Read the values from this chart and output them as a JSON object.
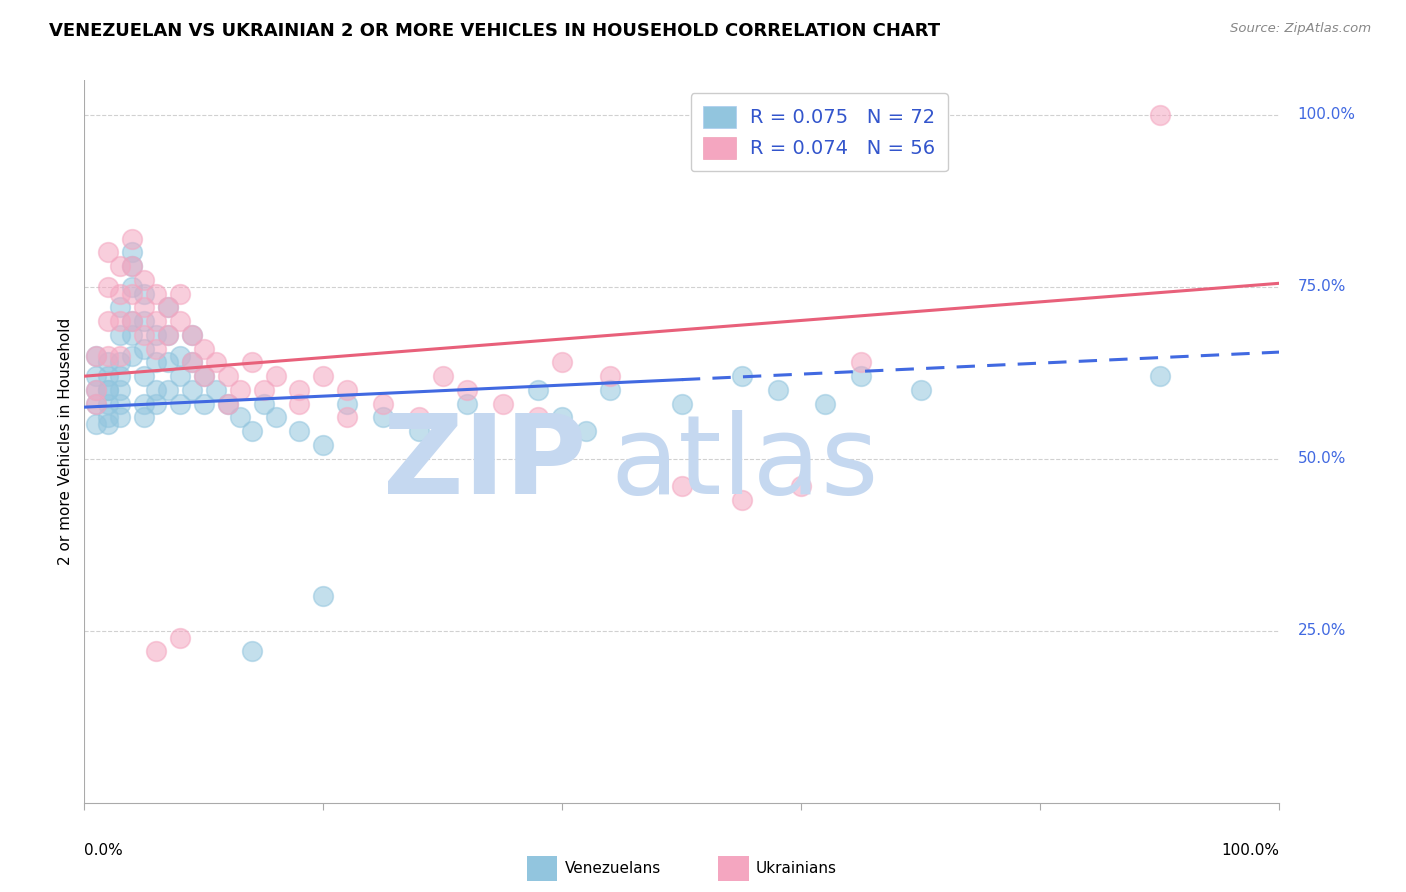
{
  "title": "VENEZUELAN VS UKRAINIAN 2 OR MORE VEHICLES IN HOUSEHOLD CORRELATION CHART",
  "source": "Source: ZipAtlas.com",
  "ylabel": "2 or more Vehicles in Household",
  "y_tick_labels": [
    "25.0%",
    "50.0%",
    "75.0%",
    "100.0%"
  ],
  "legend_label_venezuelan": "Venezuelans",
  "legend_label_ukrainian": "Ukrainians",
  "legend_R_venezuelan": "R = 0.075",
  "legend_N_venezuelan": "N = 72",
  "legend_R_ukrainian": "R = 0.074",
  "legend_N_ukrainian": "N = 56",
  "color_venezuelan": "#92c5de",
  "color_ukrainian": "#f4a6c0",
  "color_trend_venezuelan": "#4169e1",
  "color_trend_ukrainian": "#e8607a",
  "color_legend_R_N": "#3355cc",
  "background_color": "#ffffff",
  "grid_color": "#cccccc",
  "watermark_ZIP": "ZIP",
  "watermark_atlas": "atlas",
  "watermark_color": "#c5d8f0",
  "xlim": [
    0.0,
    1.0
  ],
  "ylim": [
    0.0,
    1.05
  ],
  "venezuelan_x": [
    0.01,
    0.01,
    0.01,
    0.01,
    0.01,
    0.02,
    0.02,
    0.02,
    0.02,
    0.02,
    0.02,
    0.02,
    0.03,
    0.03,
    0.03,
    0.03,
    0.03,
    0.03,
    0.03,
    0.04,
    0.04,
    0.04,
    0.04,
    0.04,
    0.04,
    0.05,
    0.05,
    0.05,
    0.05,
    0.05,
    0.05,
    0.06,
    0.06,
    0.06,
    0.06,
    0.07,
    0.07,
    0.07,
    0.07,
    0.08,
    0.08,
    0.08,
    0.09,
    0.09,
    0.09,
    0.1,
    0.1,
    0.11,
    0.12,
    0.13,
    0.14,
    0.15,
    0.16,
    0.18,
    0.2,
    0.22,
    0.25,
    0.28,
    0.32,
    0.38,
    0.4,
    0.42,
    0.44,
    0.5,
    0.55,
    0.58,
    0.62,
    0.65,
    0.7,
    0.9,
    0.14,
    0.2
  ],
  "venezuelan_y": [
    0.62,
    0.58,
    0.55,
    0.6,
    0.65,
    0.6,
    0.62,
    0.58,
    0.56,
    0.64,
    0.6,
    0.55,
    0.72,
    0.68,
    0.64,
    0.6,
    0.58,
    0.56,
    0.62,
    0.8,
    0.78,
    0.75,
    0.7,
    0.68,
    0.65,
    0.74,
    0.7,
    0.66,
    0.62,
    0.58,
    0.56,
    0.68,
    0.64,
    0.6,
    0.58,
    0.72,
    0.68,
    0.64,
    0.6,
    0.65,
    0.62,
    0.58,
    0.68,
    0.64,
    0.6,
    0.62,
    0.58,
    0.6,
    0.58,
    0.56,
    0.54,
    0.58,
    0.56,
    0.54,
    0.52,
    0.58,
    0.56,
    0.54,
    0.58,
    0.6,
    0.56,
    0.54,
    0.6,
    0.58,
    0.62,
    0.6,
    0.58,
    0.62,
    0.6,
    0.62,
    0.22,
    0.3
  ],
  "ukrainian_x": [
    0.01,
    0.01,
    0.01,
    0.02,
    0.02,
    0.02,
    0.02,
    0.03,
    0.03,
    0.03,
    0.03,
    0.04,
    0.04,
    0.04,
    0.04,
    0.05,
    0.05,
    0.05,
    0.06,
    0.06,
    0.06,
    0.07,
    0.07,
    0.08,
    0.08,
    0.09,
    0.09,
    0.1,
    0.11,
    0.12,
    0.13,
    0.14,
    0.16,
    0.18,
    0.2,
    0.22,
    0.25,
    0.28,
    0.3,
    0.32,
    0.35,
    0.38,
    0.4,
    0.44,
    0.5,
    0.55,
    0.6,
    0.65,
    0.9,
    0.1,
    0.12,
    0.15,
    0.18,
    0.22,
    0.06,
    0.08
  ],
  "ukrainian_y": [
    0.65,
    0.6,
    0.58,
    0.8,
    0.75,
    0.7,
    0.65,
    0.78,
    0.74,
    0.7,
    0.65,
    0.82,
    0.78,
    0.74,
    0.7,
    0.76,
    0.72,
    0.68,
    0.74,
    0.7,
    0.66,
    0.72,
    0.68,
    0.74,
    0.7,
    0.68,
    0.64,
    0.66,
    0.64,
    0.62,
    0.6,
    0.64,
    0.62,
    0.6,
    0.62,
    0.6,
    0.58,
    0.56,
    0.62,
    0.6,
    0.58,
    0.56,
    0.64,
    0.62,
    0.46,
    0.44,
    0.46,
    0.64,
    1.0,
    0.62,
    0.58,
    0.6,
    0.58,
    0.56,
    0.22,
    0.24
  ],
  "trend_ven_x0": 0.0,
  "trend_ven_y0": 0.575,
  "trend_ven_x1": 0.5,
  "trend_ven_y1": 0.615,
  "trend_ven_ext_x0": 0.5,
  "trend_ven_ext_y0": 0.615,
  "trend_ven_ext_x1": 1.0,
  "trend_ven_ext_y1": 0.655,
  "trend_ukr_x0": 0.0,
  "trend_ukr_y0": 0.62,
  "trend_ukr_x1": 1.0,
  "trend_ukr_y1": 0.755
}
